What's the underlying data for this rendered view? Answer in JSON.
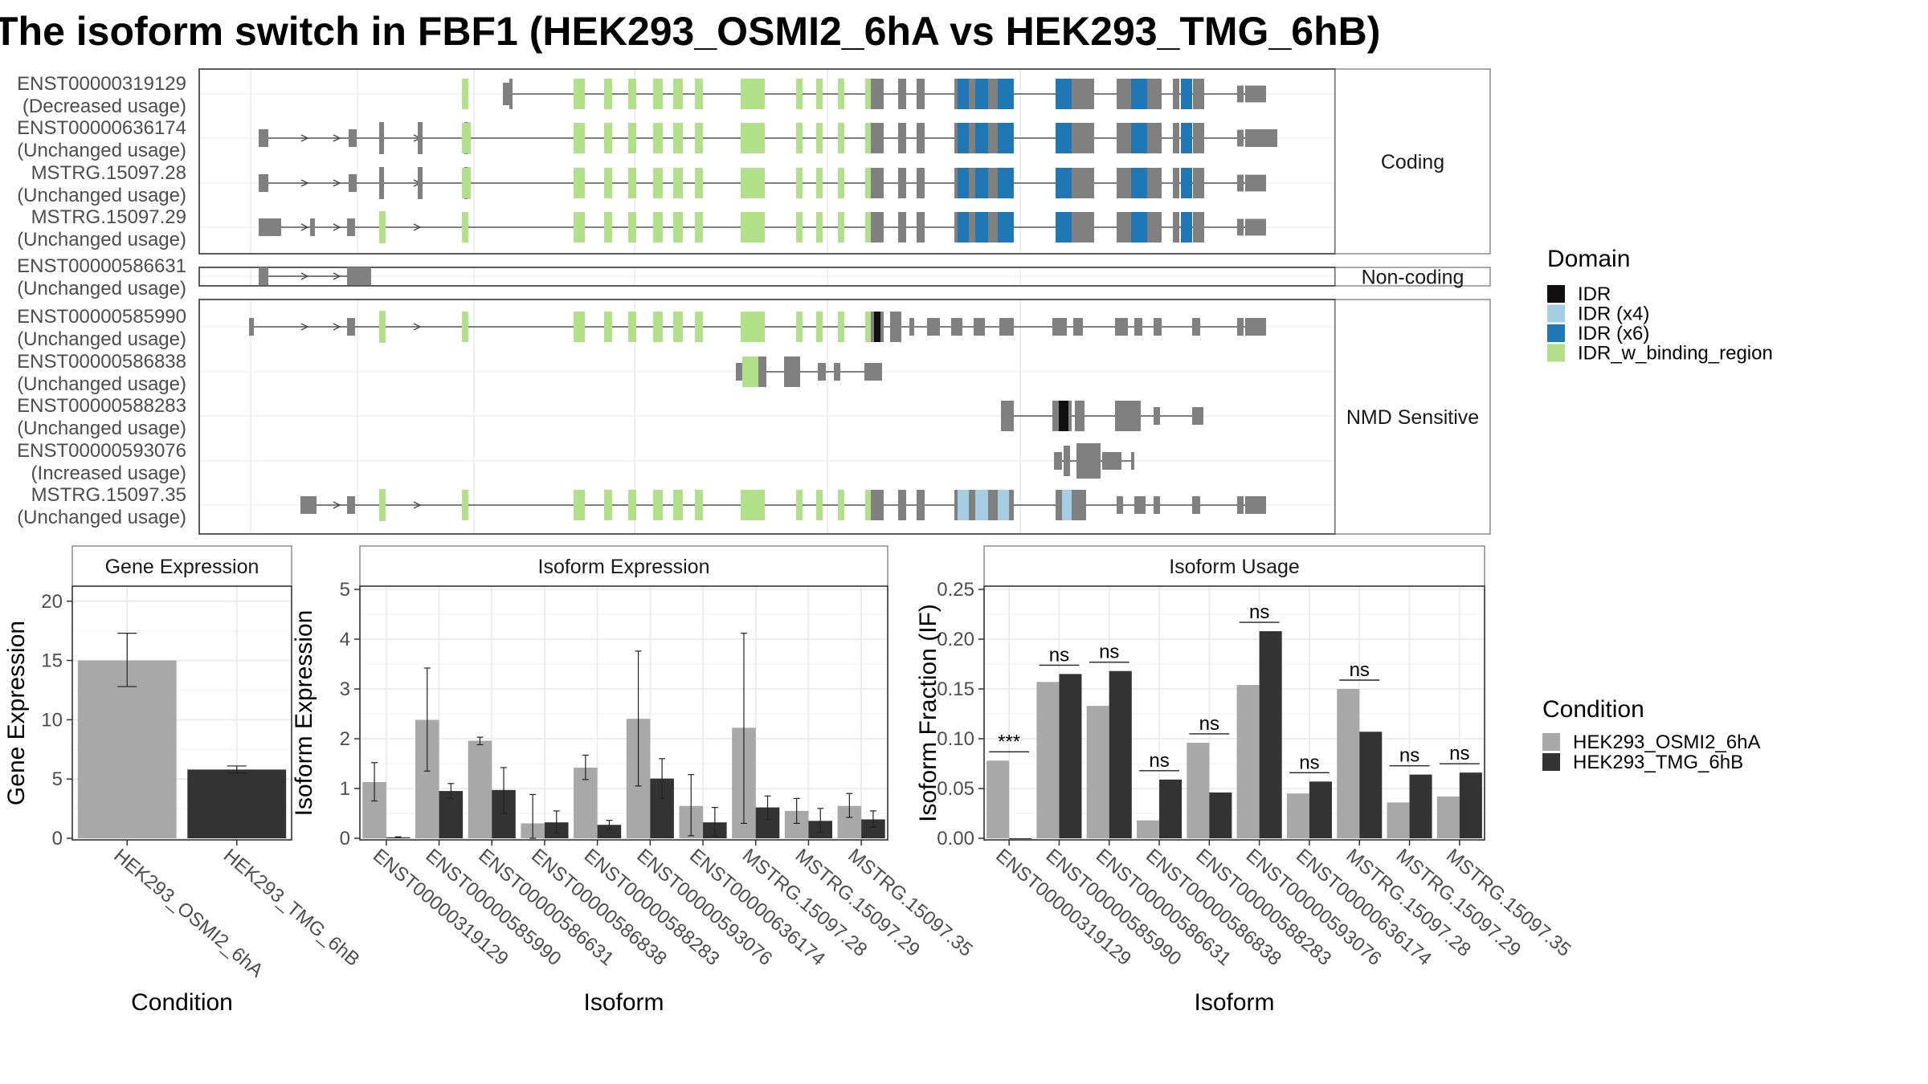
{
  "title": "The isoform switch in FBF1 (HEK293_OSMI2_6hA vs HEK293_TMG_6hB)",
  "colors": {
    "cond_a": "#a8a8a8",
    "cond_b": "#333333",
    "exon_plain": "#808080",
    "domain_IDR": "#111111",
    "domain_IDR_x4": "#a6cee3",
    "domain_IDR_x6": "#1f78b4",
    "domain_IDR_w_binding_region": "#b2df8a",
    "panel_border": "#333333",
    "strip_bg": "#ffffff",
    "grid": "#ebebeb"
  },
  "transcripts": {
    "strips": [
      "Coding",
      "Non-coding",
      "NMD Sensitive"
    ],
    "groups": [
      {
        "strip": "Coding",
        "rows": [
          {
            "id": "ENST00000319129",
            "usage": "(Decreased usage)"
          },
          {
            "id": "ENST00000636174",
            "usage": "(Unchanged usage)"
          },
          {
            "id": "MSTRG.15097.28",
            "usage": "(Unchanged usage)"
          },
          {
            "id": "MSTRG.15097.29",
            "usage": "(Unchanged usage)"
          }
        ]
      },
      {
        "strip": "Non-coding",
        "rows": [
          {
            "id": "ENST00000586631",
            "usage": "(Unchanged usage)"
          }
        ]
      },
      {
        "strip": "NMD Sensitive",
        "rows": [
          {
            "id": "ENST00000585990",
            "usage": "(Unchanged usage)"
          },
          {
            "id": "ENST00000586838",
            "usage": "(Unchanged usage)"
          },
          {
            "id": "ENST00000588283",
            "usage": "(Unchanged usage)"
          },
          {
            "id": "ENST00000593076",
            "usage": "(Increased usage)"
          },
          {
            "id": "MSTRG.15097.35",
            "usage": "(Unchanged usage)"
          }
        ]
      }
    ]
  },
  "domain_legend": {
    "title": "Domain",
    "items": [
      {
        "label": "IDR",
        "color": "#111111"
      },
      {
        "label": "IDR (x4)",
        "color": "#a6cee3"
      },
      {
        "label": "IDR (x6)",
        "color": "#1f78b4"
      },
      {
        "label": "IDR_w_binding_region",
        "color": "#b2df8a"
      }
    ]
  },
  "condition_legend": {
    "title": "Condition",
    "items": [
      {
        "label": "HEK293_OSMI2_6hA",
        "color": "#a8a8a8"
      },
      {
        "label": "HEK293_TMG_6hB",
        "color": "#333333"
      }
    ]
  },
  "chart_data": [
    {
      "type": "bar",
      "panel": "Gene Expression",
      "title": "Gene Expression",
      "xlabel": "Condition",
      "ylabel": "Gene Expression",
      "ylim": [
        0,
        21
      ],
      "yticks": [
        0,
        5,
        10,
        15,
        20
      ],
      "categories": [
        "HEK293_OSMI2_6hA",
        "HEK293_TMG_6hB"
      ],
      "values": [
        15.0,
        5.8
      ],
      "errors": [
        [
          12.8,
          17.3
        ],
        [
          5.5,
          6.1
        ]
      ]
    },
    {
      "type": "bar",
      "panel": "Isoform Expression",
      "title": "Isoform Expression",
      "xlabel": "Isoform",
      "ylabel": "Isoform Expression",
      "ylim": [
        0,
        5
      ],
      "yticks": [
        0,
        1,
        2,
        3,
        4,
        5
      ],
      "categories": [
        "ENST00000319129",
        "ENST00000585990",
        "ENST00000586631",
        "ENST00000586838",
        "ENST00000588283",
        "ENST00000593076",
        "ENST00000636174",
        "MSTRG.15097.28",
        "MSTRG.15097.29",
        "MSTRG.15097.35"
      ],
      "series": [
        {
          "name": "HEK293_OSMI2_6hA",
          "values": [
            1.13,
            2.38,
            1.96,
            0.3,
            1.42,
            2.4,
            0.65,
            2.22,
            0.55,
            0.65
          ],
          "errors": [
            [
              0.75,
              1.52
            ],
            [
              1.35,
              3.42
            ],
            [
              1.88,
              2.03
            ],
            [
              0,
              0.88
            ],
            [
              1.18,
              1.67
            ],
            [
              1.05,
              3.76
            ],
            [
              0.05,
              1.28
            ],
            [
              0.3,
              4.12
            ],
            [
              0.3,
              0.8
            ],
            [
              0.42,
              0.9
            ]
          ]
        },
        {
          "name": "HEK293_TMG_6hB",
          "values": [
            0.02,
            0.95,
            0.97,
            0.32,
            0.27,
            1.2,
            0.32,
            0.62,
            0.35,
            0.38
          ],
          "errors": [
            [
              0.01,
              0.03
            ],
            [
              0.8,
              1.1
            ],
            [
              0.5,
              1.42
            ],
            [
              0.1,
              0.55
            ],
            [
              0.18,
              0.36
            ],
            [
              0.8,
              1.6
            ],
            [
              0.05,
              0.62
            ],
            [
              0.38,
              0.85
            ],
            [
              0.12,
              0.6
            ],
            [
              0.22,
              0.55
            ]
          ]
        }
      ]
    },
    {
      "type": "bar",
      "panel": "Isoform Usage",
      "title": "Isoform Usage",
      "xlabel": "Isoform",
      "ylabel": "Isoform Fraction (IF)",
      "ylim": [
        0,
        0.25
      ],
      "yticks": [
        0.0,
        0.05,
        0.1,
        0.15,
        0.2,
        0.25
      ],
      "ytick_labels": [
        "0.00",
        "0.05",
        "0.10",
        "0.15",
        "0.20",
        "0.25"
      ],
      "categories": [
        "ENST00000319129",
        "ENST00000585990",
        "ENST00000586631",
        "ENST00000586838",
        "ENST00000588283",
        "ENST00000593076",
        "ENST00000636174",
        "MSTRG.15097.28",
        "MSTRG.15097.29",
        "MSTRG.15097.35"
      ],
      "series": [
        {
          "name": "HEK293_OSMI2_6hA",
          "values": [
            0.078,
            0.157,
            0.133,
            0.018,
            0.096,
            0.154,
            0.045,
            0.15,
            0.036,
            0.042
          ]
        },
        {
          "name": "HEK293_TMG_6hB",
          "values": [
            0.0,
            0.165,
            0.168,
            0.059,
            0.046,
            0.208,
            0.057,
            0.107,
            0.064,
            0.066
          ]
        }
      ],
      "significance": [
        "***",
        "ns",
        "ns",
        "ns",
        "ns",
        "ns",
        "ns",
        "ns",
        "ns",
        "ns"
      ]
    }
  ]
}
